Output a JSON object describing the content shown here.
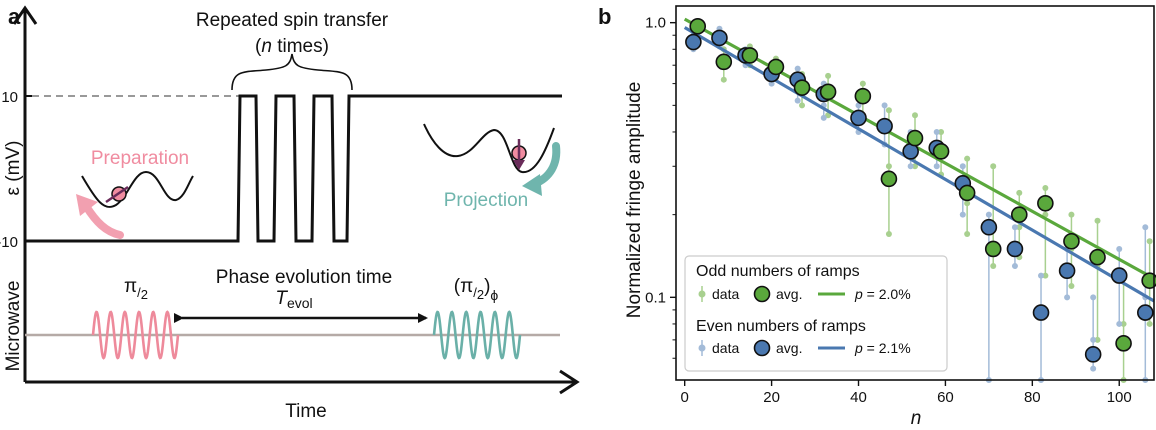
{
  "panel_a": {
    "label": "a",
    "ylabel_top": "ε (mV)",
    "ylabel_bottom": "Microwave",
    "xlabel": "Time",
    "tick_high": "10",
    "tick_low": "-10",
    "brace_line1": "Repeated spin transfer",
    "brace_line2_open": "(",
    "brace_line2_var": "n",
    "brace_line2_rest": " times)",
    "preparation": "Preparation",
    "projection": "Projection",
    "phase_label": "Phase evolution time",
    "tevol_main": "T",
    "tevol_sub": "evol",
    "pulse1_num": "π",
    "pulse1_den": "2",
    "pulse2_num": "π",
    "pulse2_den": "2",
    "pulse2_phase": "ϕ",
    "colors": {
      "preparation": "#f08ca0",
      "projection": "#6fb5ad",
      "pulse1": "#ee8a9b",
      "pulse2": "#6ab0a8",
      "baseline": "#b5aaa6"
    }
  },
  "chart_data": {
    "type": "scatter",
    "panel_label": "b",
    "xlabel": "n",
    "ylabel": "Normalized fringe amplitude",
    "xlim": [
      -2,
      108
    ],
    "ylim": [
      0.05,
      1.15
    ],
    "yscale": "log",
    "xticks": [
      0,
      20,
      40,
      60,
      80,
      100
    ],
    "yticks": [
      {
        "value": 1.0,
        "label": "1.0"
      },
      {
        "value": 0.1,
        "label": "0.1"
      }
    ],
    "legend_position": "bottom-left",
    "groups": [
      {
        "title": "Odd numbers of ramps",
        "data_label": "data",
        "avg_label": "avg.",
        "fit_label": "p = 2.0%",
        "fit_p_symbol": "p",
        "fit_p_value": " = 2.0%",
        "color": "#5aa83c",
        "light_color": "#a8d08f",
        "avg": [
          {
            "x": 3,
            "y": 0.97
          },
          {
            "x": 9,
            "y": 0.72
          },
          {
            "x": 15,
            "y": 0.76
          },
          {
            "x": 21,
            "y": 0.69
          },
          {
            "x": 27,
            "y": 0.58
          },
          {
            "x": 33,
            "y": 0.56
          },
          {
            "x": 41,
            "y": 0.54
          },
          {
            "x": 47,
            "y": 0.27
          },
          {
            "x": 53,
            "y": 0.38
          },
          {
            "x": 59,
            "y": 0.34
          },
          {
            "x": 65,
            "y": 0.24
          },
          {
            "x": 71,
            "y": 0.15
          },
          {
            "x": 77,
            "y": 0.2
          },
          {
            "x": 83,
            "y": 0.22
          },
          {
            "x": 89,
            "y": 0.16
          },
          {
            "x": 95,
            "y": 0.14
          },
          {
            "x": 101,
            "y": 0.068
          },
          {
            "x": 107,
            "y": 0.115
          }
        ],
        "data": [
          {
            "x": 3,
            "ys": [
              0.93,
              1.0,
              0.95
            ]
          },
          {
            "x": 9,
            "ys": [
              0.62,
              0.8,
              0.7
            ]
          },
          {
            "x": 15,
            "ys": [
              0.7,
              0.82,
              0.74
            ]
          },
          {
            "x": 21,
            "ys": [
              0.63,
              0.74,
              0.67
            ]
          },
          {
            "x": 27,
            "ys": [
              0.5,
              0.65,
              0.57
            ]
          },
          {
            "x": 33,
            "ys": [
              0.46,
              0.64,
              0.53
            ]
          },
          {
            "x": 41,
            "ys": [
              0.45,
              0.6,
              0.52
            ]
          },
          {
            "x": 47,
            "ys": [
              0.17,
              0.48,
              0.3
            ]
          },
          {
            "x": 53,
            "ys": [
              0.3,
              0.46,
              0.37
            ]
          },
          {
            "x": 59,
            "ys": [
              0.28,
              0.4,
              0.33
            ]
          },
          {
            "x": 65,
            "ys": [
              0.17,
              0.32,
              0.22
            ]
          },
          {
            "x": 71,
            "ys": [
              0.13,
              0.3,
              0.18
            ]
          },
          {
            "x": 77,
            "ys": [
              0.14,
              0.24,
              0.18
            ]
          },
          {
            "x": 83,
            "ys": [
              0.12,
              0.25,
              0.2
            ]
          },
          {
            "x": 89,
            "ys": [
              0.11,
              0.2,
              0.15
            ]
          },
          {
            "x": 95,
            "ys": [
              0.07,
              0.19,
              0.13
            ]
          },
          {
            "x": 101,
            "ys": [
              0.05,
              0.12,
              0.08
            ]
          },
          {
            "x": 107,
            "ys": [
              0.08,
              0.16,
              0.12
            ]
          }
        ],
        "fit": {
          "x": [
            0,
            108
          ],
          "y": [
            1.03,
            0.117
          ]
        }
      },
      {
        "title": "Even numbers of ramps",
        "data_label": "data",
        "avg_label": "avg.",
        "fit_label": "p = 2.1%",
        "fit_p_symbol": "p",
        "fit_p_value": " = 2.1%",
        "color": "#4a78b0",
        "light_color": "#a3bbd8",
        "avg": [
          {
            "x": 2,
            "y": 0.85
          },
          {
            "x": 8,
            "y": 0.88
          },
          {
            "x": 14,
            "y": 0.76
          },
          {
            "x": 20,
            "y": 0.65
          },
          {
            "x": 26,
            "y": 0.62
          },
          {
            "x": 32,
            "y": 0.55
          },
          {
            "x": 40,
            "y": 0.45
          },
          {
            "x": 46,
            "y": 0.42
          },
          {
            "x": 52,
            "y": 0.34
          },
          {
            "x": 58,
            "y": 0.35
          },
          {
            "x": 64,
            "y": 0.26
          },
          {
            "x": 70,
            "y": 0.18
          },
          {
            "x": 76,
            "y": 0.15
          },
          {
            "x": 82,
            "y": 0.088
          },
          {
            "x": 88,
            "y": 0.125
          },
          {
            "x": 94,
            "y": 0.062
          },
          {
            "x": 100,
            "y": 0.12
          },
          {
            "x": 106,
            "y": 0.088
          }
        ],
        "data": [
          {
            "x": 2,
            "ys": [
              0.8,
              0.9,
              0.86
            ]
          },
          {
            "x": 8,
            "ys": [
              0.82,
              0.95,
              0.88
            ]
          },
          {
            "x": 14,
            "ys": [
              0.7,
              0.8,
              0.75
            ]
          },
          {
            "x": 20,
            "ys": [
              0.6,
              0.7,
              0.66
            ]
          },
          {
            "x": 26,
            "ys": [
              0.52,
              0.68,
              0.6
            ]
          },
          {
            "x": 32,
            "ys": [
              0.45,
              0.6,
              0.5
            ]
          },
          {
            "x": 40,
            "ys": [
              0.4,
              0.5,
              0.45
            ]
          },
          {
            "x": 46,
            "ys": [
              0.36,
              0.5,
              0.44
            ]
          },
          {
            "x": 52,
            "ys": [
              0.3,
              0.4,
              0.34
            ]
          },
          {
            "x": 58,
            "ys": [
              0.3,
              0.4,
              0.36
            ]
          },
          {
            "x": 64,
            "ys": [
              0.2,
              0.3,
              0.25
            ]
          },
          {
            "x": 70,
            "ys": [
              0.05,
              0.2,
              0.15
            ]
          },
          {
            "x": 76,
            "ys": [
              0.13,
              0.18,
              0.15
            ]
          },
          {
            "x": 82,
            "ys": [
              0.05,
              0.12,
              0.09
            ]
          },
          {
            "x": 88,
            "ys": [
              0.1,
              0.15,
              0.13
            ]
          },
          {
            "x": 94,
            "ys": [
              0.055,
              0.1,
              0.07
            ]
          },
          {
            "x": 100,
            "ys": [
              0.08,
              0.15,
              0.12
            ]
          },
          {
            "x": 106,
            "ys": [
              0.05,
              0.18,
              0.1
            ]
          }
        ],
        "fit": {
          "x": [
            0,
            108
          ],
          "y": [
            0.96,
            0.097
          ]
        }
      }
    ]
  }
}
